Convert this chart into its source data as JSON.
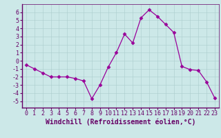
{
  "hours": [
    0,
    1,
    2,
    3,
    4,
    5,
    6,
    7,
    8,
    9,
    10,
    11,
    12,
    13,
    14,
    15,
    16,
    17,
    18,
    19,
    20,
    21,
    22,
    23
  ],
  "values": [
    -0.5,
    -1.0,
    -1.5,
    -2.0,
    -2.0,
    -2.0,
    -2.2,
    -2.5,
    -4.7,
    -3.0,
    -0.8,
    1.0,
    3.3,
    2.2,
    5.3,
    6.3,
    5.5,
    4.5,
    3.5,
    -0.7,
    -1.1,
    -1.2,
    -2.6,
    -4.6
  ],
  "line_color": "#990099",
  "marker": "D",
  "marker_size": 2.5,
  "bg_color": "#cce8e8",
  "grid_color": "#aacccc",
  "xlabel": "Windchill (Refroidissement éolien,°C)",
  "xlabel_fontsize": 7,
  "ylim": [
    -5.8,
    7.0
  ],
  "xlim": [
    -0.5,
    23.5
  ],
  "yticks": [
    -5,
    -4,
    -3,
    -2,
    -1,
    0,
    1,
    2,
    3,
    4,
    5,
    6
  ],
  "xticks": [
    0,
    1,
    2,
    3,
    4,
    5,
    6,
    7,
    8,
    9,
    10,
    11,
    12,
    13,
    14,
    15,
    16,
    17,
    18,
    19,
    20,
    21,
    22,
    23
  ],
  "tick_fontsize": 6,
  "spine_color": "#660066",
  "axis_color": "#660066",
  "bottom_spine_color": "#660066"
}
